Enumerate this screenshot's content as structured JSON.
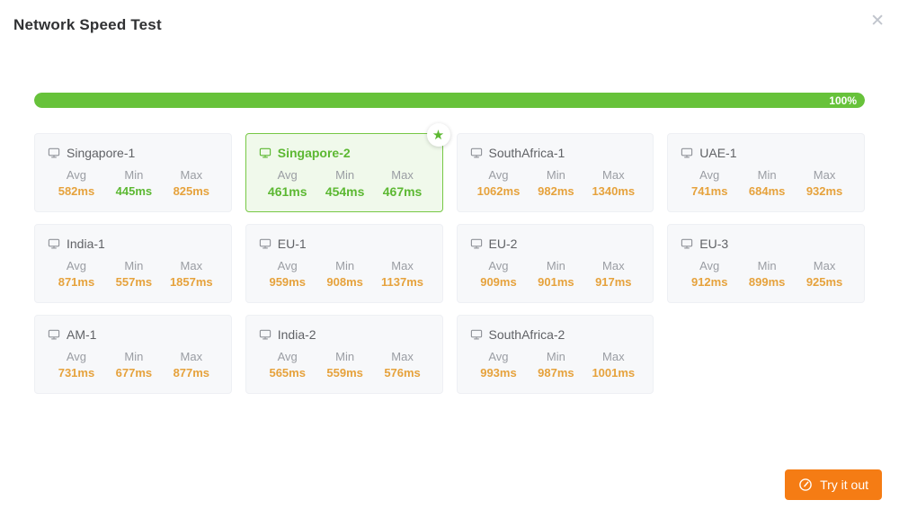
{
  "dialog": {
    "title": "Network Speed Test"
  },
  "icons": {
    "close": "✕",
    "star": "★"
  },
  "progress": {
    "percent": 100,
    "label": "100%",
    "color": "#67c23a"
  },
  "stat_columns": [
    "Avg",
    "Min",
    "Max"
  ],
  "servers": [
    {
      "name": "Singapore-1",
      "selected": false,
      "stats": [
        {
          "label": "Avg",
          "value": "582ms",
          "color": "orange"
        },
        {
          "label": "Min",
          "value": "445ms",
          "color": "green"
        },
        {
          "label": "Max",
          "value": "825ms",
          "color": "orange"
        }
      ]
    },
    {
      "name": "Singapore-2",
      "selected": true,
      "stats": [
        {
          "label": "Avg",
          "value": "461ms",
          "color": "green"
        },
        {
          "label": "Min",
          "value": "454ms",
          "color": "green"
        },
        {
          "label": "Max",
          "value": "467ms",
          "color": "green"
        }
      ]
    },
    {
      "name": "SouthAfrica-1",
      "selected": false,
      "stats": [
        {
          "label": "Avg",
          "value": "1062ms",
          "color": "orange"
        },
        {
          "label": "Min",
          "value": "982ms",
          "color": "orange"
        },
        {
          "label": "Max",
          "value": "1340ms",
          "color": "orange"
        }
      ]
    },
    {
      "name": "UAE-1",
      "selected": false,
      "stats": [
        {
          "label": "Avg",
          "value": "741ms",
          "color": "orange"
        },
        {
          "label": "Min",
          "value": "684ms",
          "color": "orange"
        },
        {
          "label": "Max",
          "value": "932ms",
          "color": "orange"
        }
      ]
    },
    {
      "name": "India-1",
      "selected": false,
      "stats": [
        {
          "label": "Avg",
          "value": "871ms",
          "color": "orange"
        },
        {
          "label": "Min",
          "value": "557ms",
          "color": "orange"
        },
        {
          "label": "Max",
          "value": "1857ms",
          "color": "orange"
        }
      ]
    },
    {
      "name": "EU-1",
      "selected": false,
      "stats": [
        {
          "label": "Avg",
          "value": "959ms",
          "color": "orange"
        },
        {
          "label": "Min",
          "value": "908ms",
          "color": "orange"
        },
        {
          "label": "Max",
          "value": "1137ms",
          "color": "orange"
        }
      ]
    },
    {
      "name": "EU-2",
      "selected": false,
      "stats": [
        {
          "label": "Avg",
          "value": "909ms",
          "color": "orange"
        },
        {
          "label": "Min",
          "value": "901ms",
          "color": "orange"
        },
        {
          "label": "Max",
          "value": "917ms",
          "color": "orange"
        }
      ]
    },
    {
      "name": "EU-3",
      "selected": false,
      "stats": [
        {
          "label": "Avg",
          "value": "912ms",
          "color": "orange"
        },
        {
          "label": "Min",
          "value": "899ms",
          "color": "orange"
        },
        {
          "label": "Max",
          "value": "925ms",
          "color": "orange"
        }
      ]
    },
    {
      "name": "AM-1",
      "selected": false,
      "stats": [
        {
          "label": "Avg",
          "value": "731ms",
          "color": "orange"
        },
        {
          "label": "Min",
          "value": "677ms",
          "color": "orange"
        },
        {
          "label": "Max",
          "value": "877ms",
          "color": "orange"
        }
      ]
    },
    {
      "name": "India-2",
      "selected": false,
      "stats": [
        {
          "label": "Avg",
          "value": "565ms",
          "color": "orange"
        },
        {
          "label": "Min",
          "value": "559ms",
          "color": "orange"
        },
        {
          "label": "Max",
          "value": "576ms",
          "color": "orange"
        }
      ]
    },
    {
      "name": "SouthAfrica-2",
      "selected": false,
      "stats": [
        {
          "label": "Avg",
          "value": "993ms",
          "color": "orange"
        },
        {
          "label": "Min",
          "value": "987ms",
          "color": "orange"
        },
        {
          "label": "Max",
          "value": "1001ms",
          "color": "orange"
        }
      ]
    }
  ],
  "footer": {
    "try_button_label": "Try it out"
  },
  "colors": {
    "success_green": "#67c23a",
    "value_orange": "#e6a23c",
    "button_orange": "#f57c14"
  }
}
